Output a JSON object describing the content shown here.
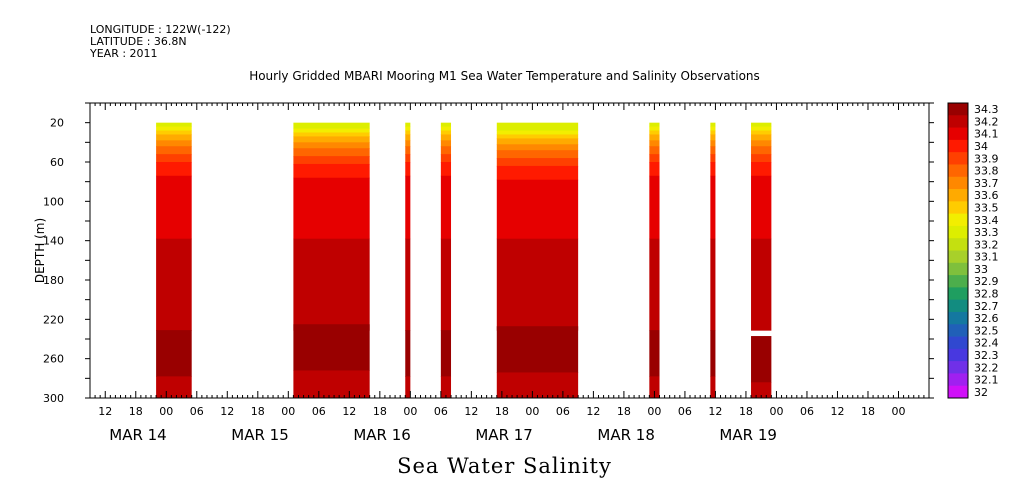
{
  "header": {
    "longitude": "LONGITUDE : 122W(-122)",
    "latitude": "LATITUDE : 36.8N",
    "year": "YEAR : 2011"
  },
  "titles": {
    "plot_title": "Hourly Gridded MBARI Mooring M1 Sea Water Temperature and Salinity Observations",
    "bottom_title": "Sea Water Salinity"
  },
  "chart_data": {
    "type": "heatmap",
    "title": "Hourly Gridded MBARI Mooring M1 Sea Water Temperature and Salinity Observations",
    "variable": "Sea Water Salinity",
    "ylabel": "DEPTH (m)",
    "xlabel": "",
    "ylim": [
      300,
      0
    ],
    "x_range_hours": [
      -15,
      150
    ],
    "y_ticks": [
      20,
      60,
      100,
      140,
      180,
      220,
      260,
      300
    ],
    "x_hour_ticks": [
      {
        "t": -12,
        "label": "12"
      },
      {
        "t": -6,
        "label": "18"
      },
      {
        "t": 0,
        "label": "00"
      },
      {
        "t": 6,
        "label": "06"
      },
      {
        "t": 12,
        "label": "12"
      },
      {
        "t": 18,
        "label": "18"
      },
      {
        "t": 24,
        "label": "00"
      },
      {
        "t": 30,
        "label": "06"
      },
      {
        "t": 36,
        "label": "12"
      },
      {
        "t": 42,
        "label": "18"
      },
      {
        "t": 48,
        "label": "00"
      },
      {
        "t": 54,
        "label": "06"
      },
      {
        "t": 60,
        "label": "12"
      },
      {
        "t": 66,
        "label": "18"
      },
      {
        "t": 72,
        "label": "00"
      },
      {
        "t": 78,
        "label": "06"
      },
      {
        "t": 84,
        "label": "12"
      },
      {
        "t": 90,
        "label": "18"
      },
      {
        "t": 96,
        "label": "00"
      },
      {
        "t": 102,
        "label": "06"
      },
      {
        "t": 108,
        "label": "12"
      },
      {
        "t": 114,
        "label": "18"
      },
      {
        "t": 120,
        "label": "00"
      },
      {
        "t": 126,
        "label": "06"
      },
      {
        "t": 132,
        "label": "12"
      },
      {
        "t": 138,
        "label": "18"
      },
      {
        "t": 144,
        "label": "00"
      }
    ],
    "date_labels": [
      {
        "t": -12,
        "label": "MAR 14"
      },
      {
        "t": 12,
        "label": "MAR 15"
      },
      {
        "t": 36,
        "label": "MAR 16"
      },
      {
        "t": 60,
        "label": "MAR 17"
      },
      {
        "t": 84,
        "label": "MAR 18"
      },
      {
        "t": 108,
        "label": "MAR 19"
      }
    ],
    "data_segments": [
      {
        "t0": -2,
        "t1": 5,
        "top_shift": 0,
        "deep_shift": 0
      },
      {
        "t0": 25,
        "t1": 40,
        "top_shift": 2,
        "deep_shift": -6
      },
      {
        "t0": 47,
        "t1": 48,
        "top_shift": 0,
        "deep_shift": 0
      },
      {
        "t0": 54,
        "t1": 56,
        "top_shift": 0,
        "deep_shift": 0
      },
      {
        "t0": 65,
        "t1": 81,
        "top_shift": 4,
        "deep_shift": -4
      },
      {
        "t0": 95,
        "t1": 97,
        "top_shift": 0,
        "deep_shift": 0
      },
      {
        "t0": 107,
        "t1": 108,
        "top_shift": 0,
        "deep_shift": 0
      },
      {
        "t0": 115,
        "t1": 119,
        "top_shift": 0,
        "deep_shift": 6
      }
    ],
    "depth_bands": [
      {
        "from": 20,
        "to": 24,
        "value": 33.3
      },
      {
        "from": 24,
        "to": 28,
        "value": 33.4
      },
      {
        "from": 28,
        "to": 32,
        "value": 33.5
      },
      {
        "from": 32,
        "to": 38,
        "value": 33.6
      },
      {
        "from": 38,
        "to": 44,
        "value": 33.7
      },
      {
        "from": 44,
        "to": 52,
        "value": 33.8
      },
      {
        "from": 52,
        "to": 60,
        "value": 33.9
      },
      {
        "from": 60,
        "to": 74,
        "value": 34.0
      },
      {
        "from": 74,
        "to": 138,
        "value": 34.1
      },
      {
        "from": 138,
        "to": 231,
        "value": 34.2
      },
      {
        "from": 231,
        "to": 278,
        "value": 34.3
      },
      {
        "from": 278,
        "to": 300,
        "value": 34.2
      }
    ],
    "colorbar": [
      {
        "value": "34.3",
        "color": "#990000"
      },
      {
        "value": "34.2",
        "color": "#bf0000"
      },
      {
        "value": "34.1",
        "color": "#e60000"
      },
      {
        "value": "34",
        "color": "#ff1a00"
      },
      {
        "value": "33.9",
        "color": "#ff4000"
      },
      {
        "value": "33.8",
        "color": "#ff6600"
      },
      {
        "value": "33.7",
        "color": "#ff8800"
      },
      {
        "value": "33.6",
        "color": "#ffaa00"
      },
      {
        "value": "33.5",
        "color": "#ffcc00"
      },
      {
        "value": "33.4",
        "color": "#f2ee00"
      },
      {
        "value": "33.3",
        "color": "#ddee00"
      },
      {
        "value": "33.2",
        "color": "#c4e010"
      },
      {
        "value": "33.1",
        "color": "#a8d02a"
      },
      {
        "value": "33",
        "color": "#7fc03c"
      },
      {
        "value": "32.9",
        "color": "#4cae4c"
      },
      {
        "value": "32.8",
        "color": "#1f9e60"
      },
      {
        "value": "32.7",
        "color": "#128c80"
      },
      {
        "value": "32.6",
        "color": "#1478a0"
      },
      {
        "value": "32.5",
        "color": "#2060b8"
      },
      {
        "value": "32.4",
        "color": "#3048d0"
      },
      {
        "value": "32.3",
        "color": "#4838e0"
      },
      {
        "value": "32.2",
        "color": "#7030e8"
      },
      {
        "value": "32.1",
        "color": "#a020f0"
      },
      {
        "value": "32",
        "color": "#d010f8"
      }
    ]
  }
}
